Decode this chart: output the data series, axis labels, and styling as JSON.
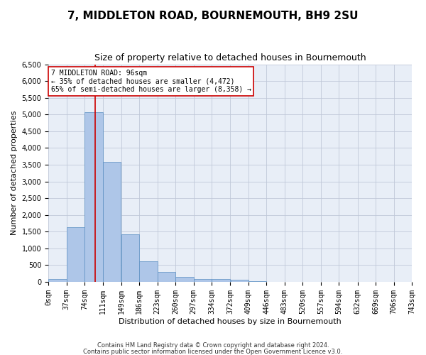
{
  "title": "7, MIDDLETON ROAD, BOURNEMOUTH, BH9 2SU",
  "subtitle": "Size of property relative to detached houses in Bournemouth",
  "xlabel": "Distribution of detached houses by size in Bournemouth",
  "ylabel": "Number of detached properties",
  "footnote1": "Contains HM Land Registry data © Crown copyright and database right 2024.",
  "footnote2": "Contains public sector information licensed under the Open Government Licence v3.0.",
  "bar_color": "#aec6e8",
  "bar_edge_color": "#5a8fc2",
  "background_color": "#e8eef7",
  "bin_edges": [
    0,
    37,
    74,
    111,
    149,
    186,
    223,
    260,
    297,
    334,
    372,
    409,
    446,
    483,
    520,
    557,
    594,
    632,
    669,
    706,
    743
  ],
  "bar_heights": [
    75,
    1625,
    5075,
    3575,
    1425,
    625,
    290,
    140,
    90,
    75,
    60,
    30,
    10,
    5,
    3,
    2,
    1,
    1,
    0,
    0
  ],
  "ylim": [
    0,
    6500
  ],
  "yticks": [
    0,
    500,
    1000,
    1500,
    2000,
    2500,
    3000,
    3500,
    4000,
    4500,
    5000,
    5500,
    6000,
    6500
  ],
  "property_size": 96,
  "red_line_color": "#cc0000",
  "annotation_text": "7 MIDDLETON ROAD: 96sqm\n← 35% of detached houses are smaller (4,472)\n65% of semi-detached houses are larger (8,358) →",
  "annotation_box_color": "#ffffff",
  "annotation_box_edge_color": "#cc0000",
  "grid_color": "#c0c8d8",
  "title_fontsize": 11,
  "subtitle_fontsize": 9,
  "tick_label_fontsize": 7,
  "axis_label_fontsize": 8,
  "annotation_fontsize": 7
}
